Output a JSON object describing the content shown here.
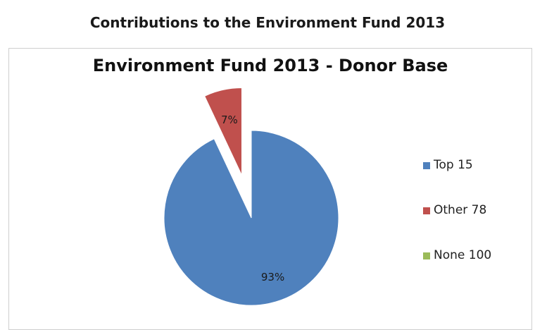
{
  "page": {
    "title": "Contributions to the Environment Fund 2013"
  },
  "chart_data": {
    "type": "pie",
    "title": "Environment Fund 2013 - Donor Base",
    "slices": [
      {
        "name": "Top 15",
        "value": 93,
        "label": "93%",
        "color": "#4f81bd",
        "exploded": false
      },
      {
        "name": "Other 78",
        "value": 7,
        "label": "7%",
        "color": "#c0504d",
        "exploded": true
      },
      {
        "name": "None 100",
        "value": 0,
        "label": "",
        "color": "#9bbb59",
        "exploded": false
      }
    ],
    "legend_position": "right"
  }
}
